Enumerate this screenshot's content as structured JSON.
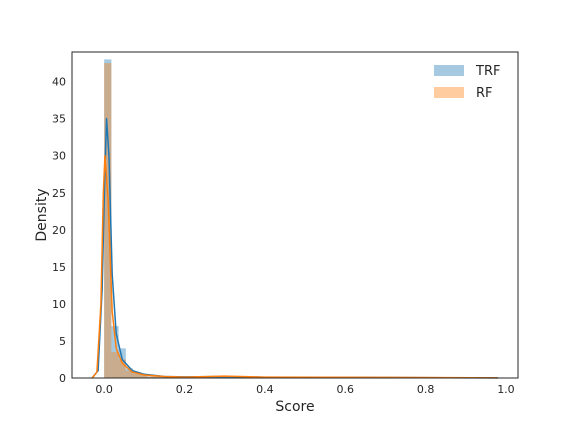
{
  "chart_data": {
    "type": "histogram",
    "title": "",
    "xlabel": "Score",
    "ylabel": "Density",
    "xlim": [
      -0.08,
      1.03
    ],
    "ylim": [
      0,
      44
    ],
    "x_ticks": [
      0.0,
      0.2,
      0.4,
      0.6,
      0.8,
      1.0
    ],
    "x_tick_labels": [
      "0.0",
      "0.2",
      "0.4",
      "0.6",
      "0.8",
      "1.0"
    ],
    "y_ticks": [
      0,
      5,
      10,
      15,
      20,
      25,
      30,
      35,
      40
    ],
    "y_tick_labels": [
      "0",
      "5",
      "10",
      "15",
      "20",
      "25",
      "30",
      "35",
      "40"
    ],
    "grid": false,
    "legend_position": "top-right",
    "series": [
      {
        "name": "TRF",
        "hist_color": "#1f77b4",
        "line_color": "#1f77b4",
        "bins": [
          {
            "x0": 0.0,
            "x1": 0.018,
            "y": 43.0
          },
          {
            "x0": 0.018,
            "x1": 0.036,
            "y": 7.0
          },
          {
            "x0": 0.036,
            "x1": 0.054,
            "y": 4.0
          },
          {
            "x0": 0.054,
            "x1": 0.072,
            "y": 1.3
          },
          {
            "x0": 0.072,
            "x1": 0.09,
            "y": 0.8
          },
          {
            "x0": 0.09,
            "x1": 0.108,
            "y": 0.5
          },
          {
            "x0": 0.108,
            "x1": 0.2,
            "y": 0.2
          },
          {
            "x0": 0.2,
            "x1": 0.4,
            "y": 0.1
          },
          {
            "x0": 0.4,
            "x1": 0.6,
            "y": 0.05
          },
          {
            "x0": 0.6,
            "x1": 0.99,
            "y": 0.03
          }
        ],
        "kde": [
          [
            -0.03,
            0.0
          ],
          [
            -0.015,
            1.0
          ],
          [
            -0.005,
            12.0
          ],
          [
            0.002,
            28.0
          ],
          [
            0.006,
            35.0
          ],
          [
            0.012,
            30.0
          ],
          [
            0.02,
            14.0
          ],
          [
            0.03,
            6.0
          ],
          [
            0.045,
            2.5
          ],
          [
            0.07,
            1.0
          ],
          [
            0.1,
            0.5
          ],
          [
            0.15,
            0.2
          ],
          [
            0.2,
            0.15
          ],
          [
            0.3,
            0.2
          ],
          [
            0.4,
            0.1
          ],
          [
            0.55,
            0.08
          ],
          [
            0.7,
            0.06
          ],
          [
            0.85,
            0.04
          ],
          [
            0.98,
            0.02
          ]
        ]
      },
      {
        "name": "RF",
        "hist_color": "#ff7f0e",
        "line_color": "#ff7f0e",
        "bins": [
          {
            "x0": 0.0,
            "x1": 0.018,
            "y": 42.5
          },
          {
            "x0": 0.018,
            "x1": 0.036,
            "y": 3.5
          },
          {
            "x0": 0.036,
            "x1": 0.054,
            "y": 2.5
          },
          {
            "x0": 0.054,
            "x1": 0.072,
            "y": 1.0
          },
          {
            "x0": 0.072,
            "x1": 0.09,
            "y": 0.6
          },
          {
            "x0": 0.09,
            "x1": 0.108,
            "y": 0.4
          },
          {
            "x0": 0.108,
            "x1": 0.2,
            "y": 0.2
          },
          {
            "x0": 0.2,
            "x1": 0.4,
            "y": 0.1
          },
          {
            "x0": 0.4,
            "x1": 0.6,
            "y": 0.05
          },
          {
            "x0": 0.6,
            "x1": 0.99,
            "y": 0.03
          }
        ],
        "kde": [
          [
            -0.03,
            0.0
          ],
          [
            -0.018,
            0.8
          ],
          [
            -0.008,
            10.0
          ],
          [
            -0.002,
            25.0
          ],
          [
            0.002,
            30.0
          ],
          [
            0.01,
            24.0
          ],
          [
            0.02,
            9.0
          ],
          [
            0.03,
            4.0
          ],
          [
            0.045,
            2.0
          ],
          [
            0.07,
            0.8
          ],
          [
            0.1,
            0.4
          ],
          [
            0.15,
            0.2
          ],
          [
            0.2,
            0.12
          ],
          [
            0.3,
            0.25
          ],
          [
            0.4,
            0.12
          ],
          [
            0.55,
            0.1
          ],
          [
            0.7,
            0.08
          ],
          [
            0.85,
            0.05
          ],
          [
            0.98,
            0.02
          ]
        ]
      }
    ]
  }
}
